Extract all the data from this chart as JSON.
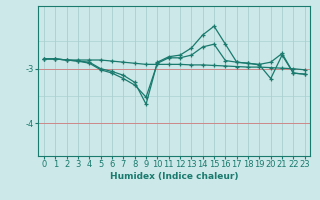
{
  "bg_color": "#cce8e8",
  "grid_color": "#aad0d0",
  "line_color": "#1a7a6e",
  "red_line_color": "#cc8888",
  "xlabel": "Humidex (Indice chaleur)",
  "x_ticks": [
    0,
    1,
    2,
    3,
    4,
    5,
    6,
    7,
    8,
    9,
    10,
    11,
    12,
    13,
    14,
    15,
    16,
    17,
    18,
    19,
    20,
    21,
    22,
    23
  ],
  "ylim": [
    -4.6,
    -1.85
  ],
  "yticks": [
    -4,
    -3
  ],
  "series_x": [
    0,
    1,
    2,
    3,
    4,
    5,
    6,
    7,
    8,
    9,
    10,
    11,
    12,
    13,
    14,
    15,
    16,
    17,
    18,
    19,
    20,
    21,
    22,
    23
  ],
  "series": [
    [
      -2.82,
      -2.82,
      -2.84,
      -2.84,
      -2.84,
      -2.84,
      -2.86,
      -2.88,
      -2.9,
      -2.92,
      -2.92,
      -2.92,
      -2.92,
      -2.93,
      -2.93,
      -2.94,
      -2.95,
      -2.96,
      -2.97,
      -2.97,
      -2.98,
      -2.99,
      -3.0,
      -3.02
    ],
    [
      -2.82,
      -2.82,
      -2.84,
      -2.86,
      -2.88,
      -3.0,
      -3.05,
      -3.12,
      -3.25,
      -3.65,
      -2.88,
      -2.78,
      -2.75,
      -2.62,
      -2.38,
      -2.22,
      -2.55,
      -2.88,
      -2.9,
      -2.92,
      -2.88,
      -2.72,
      -3.08,
      -3.1
    ],
    [
      -2.82,
      -2.82,
      -2.84,
      -2.86,
      -2.9,
      -3.02,
      -3.08,
      -3.18,
      -3.3,
      -3.52,
      -2.9,
      -2.8,
      -2.8,
      -2.75,
      -2.6,
      -2.55,
      -2.85,
      -2.88,
      -2.9,
      -2.93,
      -3.18,
      -2.75,
      -3.08,
      -3.1
    ]
  ]
}
